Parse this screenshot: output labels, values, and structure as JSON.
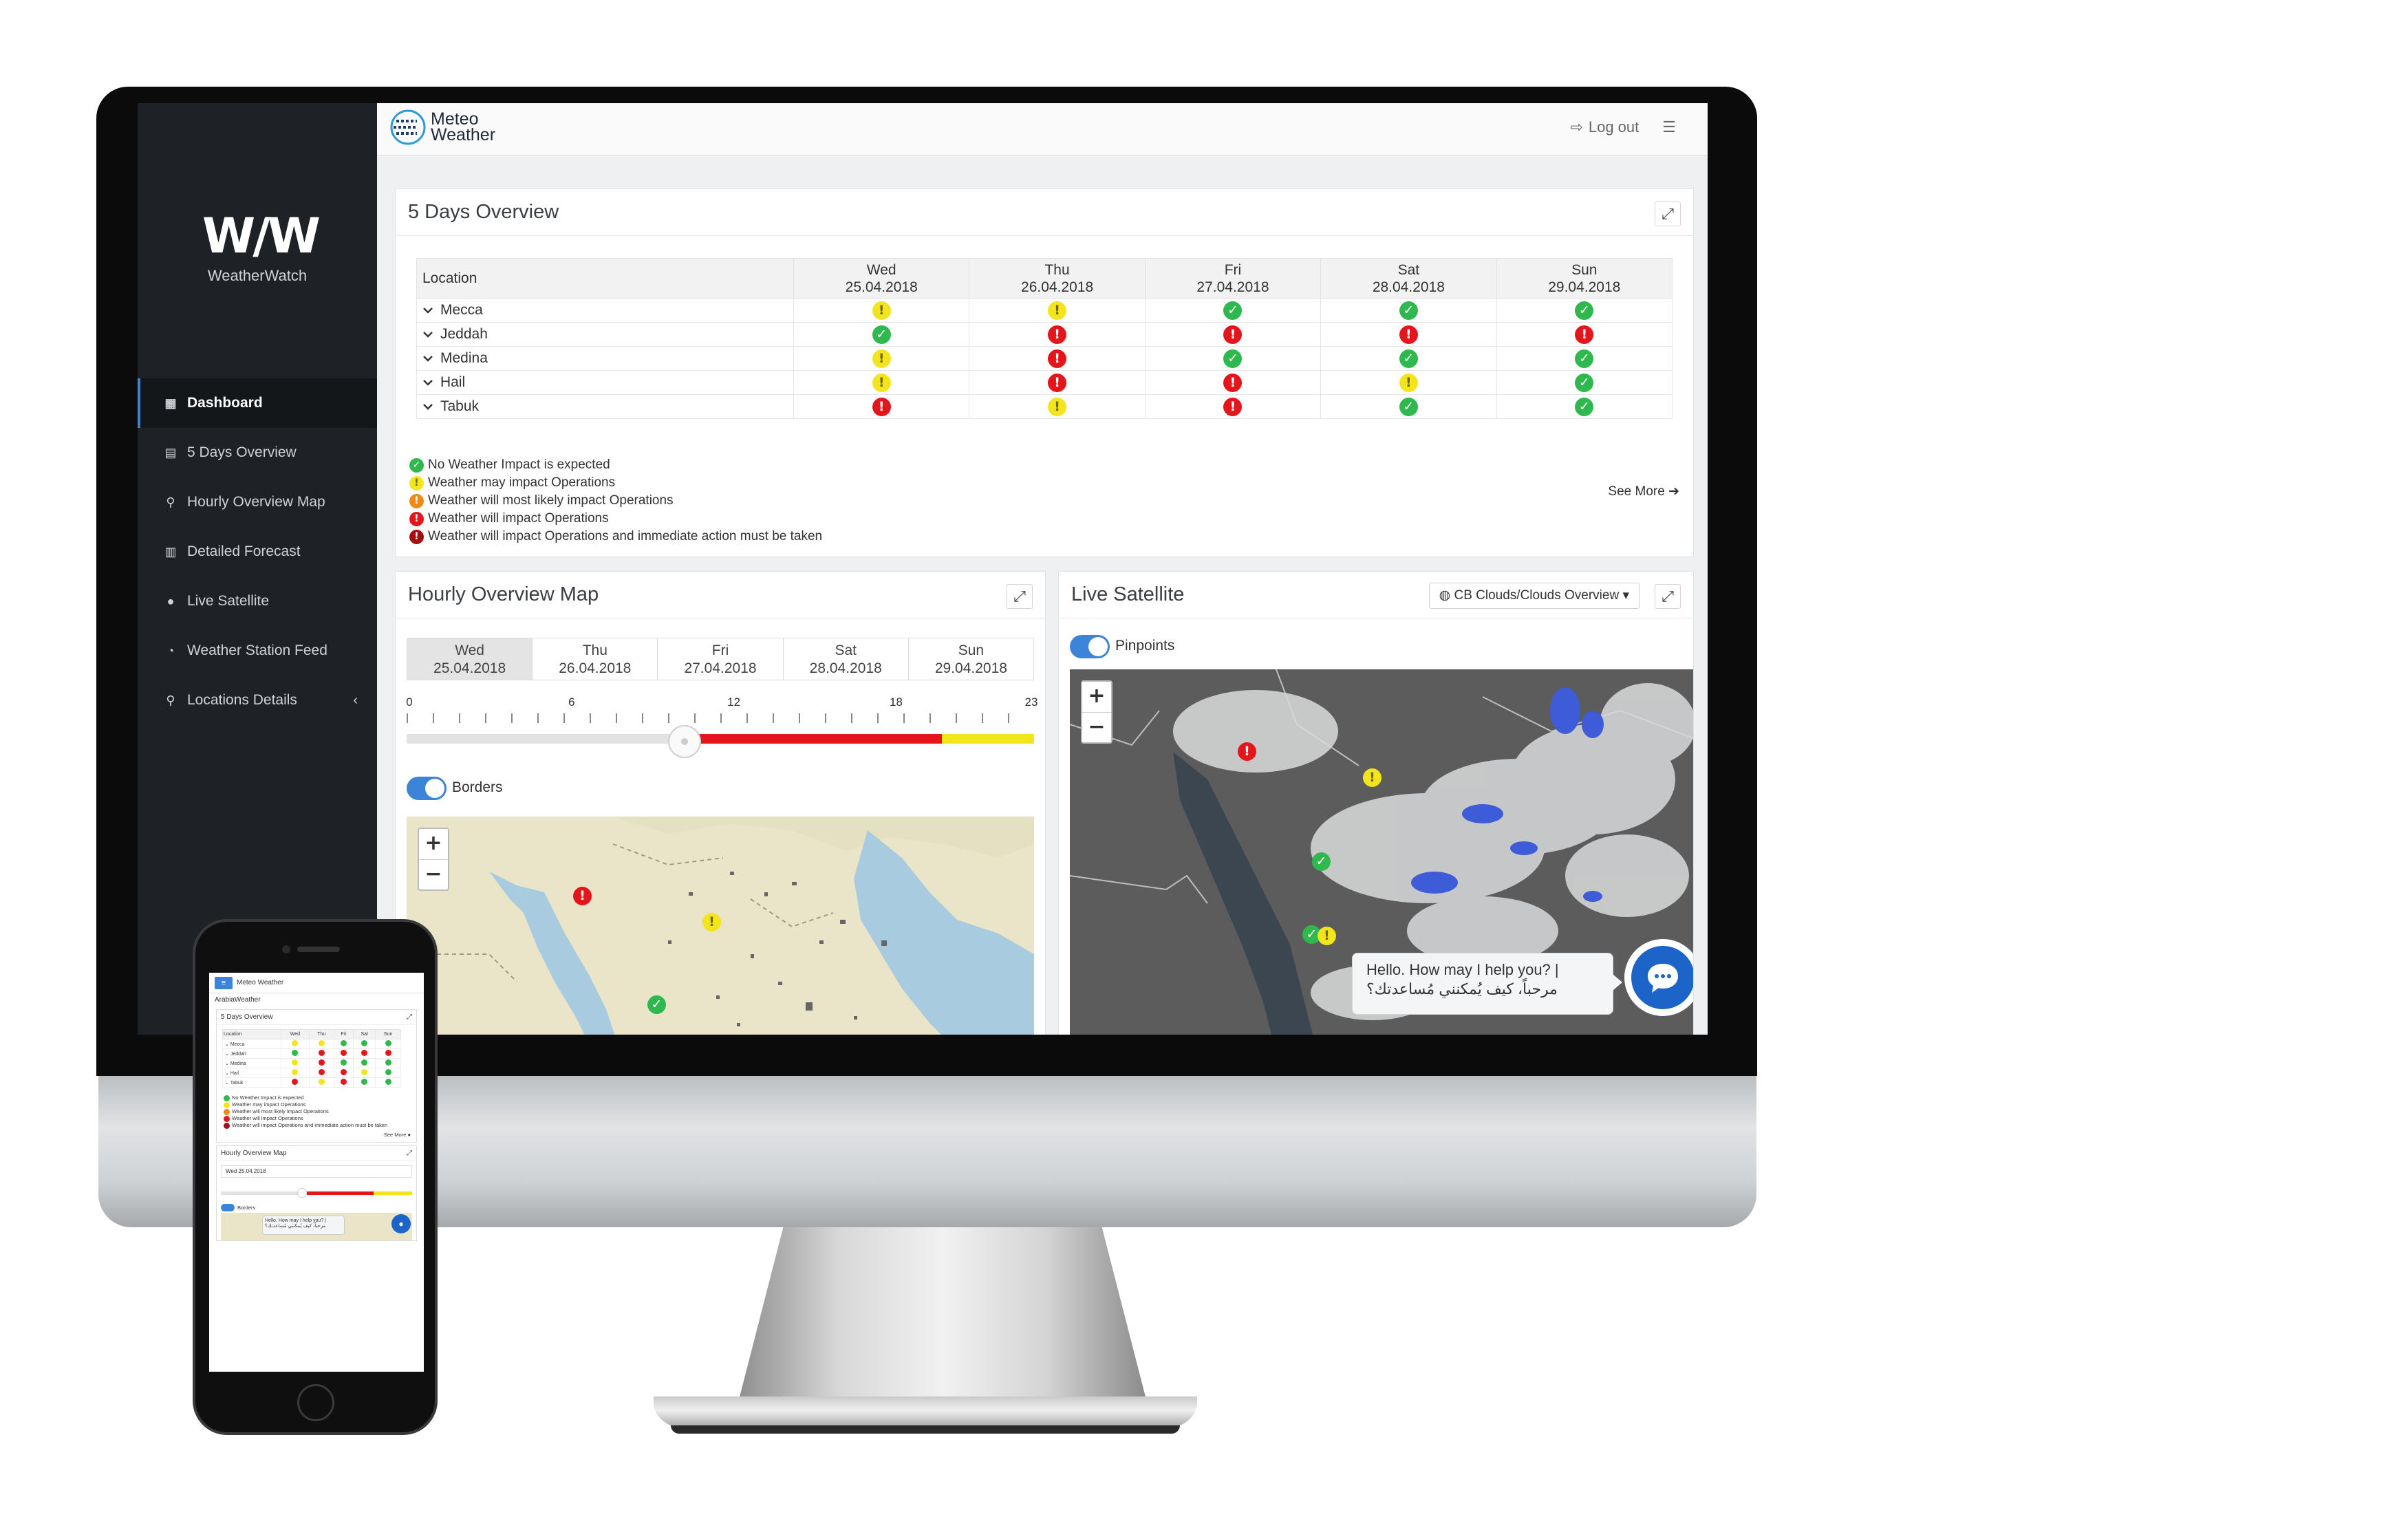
{
  "sidebar": {
    "logo_mark": "W/W",
    "logo_text": "WeatherWatch",
    "items": [
      {
        "label": "Dashboard",
        "icon": "dashboard-icon",
        "active": true
      },
      {
        "label": "5 Days Overview",
        "icon": "table-icon"
      },
      {
        "label": "Hourly Overview Map",
        "icon": "map-marker-icon"
      },
      {
        "label": "Detailed Forecast",
        "icon": "bar-chart-icon"
      },
      {
        "label": "Live Satellite",
        "icon": "globe-icon"
      },
      {
        "label": "Weather Station Feed",
        "icon": "dashboard-gauge-icon"
      },
      {
        "label": "Locations Details",
        "icon": "map-marker-icon",
        "caret": "‹"
      }
    ]
  },
  "topbar": {
    "brand_line1": "Meteo",
    "brand_line2": "Weather",
    "logout_label": "Log out",
    "menu_icon": "list-icon"
  },
  "five_days": {
    "title": "5 Days Overview",
    "location_header": "Location",
    "days": [
      {
        "day": "Wed",
        "date": "25.04.2018"
      },
      {
        "day": "Thu",
        "date": "26.04.2018"
      },
      {
        "day": "Fri",
        "date": "27.04.2018"
      },
      {
        "day": "Sat",
        "date": "28.04.2018"
      },
      {
        "day": "Sun",
        "date": "29.04.2018"
      }
    ],
    "rows": [
      {
        "location": "Mecca",
        "status": [
          "yellow",
          "yellow",
          "green",
          "green",
          "green"
        ]
      },
      {
        "location": "Jeddah",
        "status": [
          "green",
          "red",
          "red",
          "red",
          "red"
        ]
      },
      {
        "location": "Medina",
        "status": [
          "yellow",
          "red",
          "green",
          "green",
          "green"
        ]
      },
      {
        "location": "Hail",
        "status": [
          "yellow",
          "red",
          "red",
          "yellow",
          "green"
        ]
      },
      {
        "location": "Tabuk",
        "status": [
          "red",
          "yellow",
          "red",
          "green",
          "green"
        ]
      }
    ],
    "legend": [
      {
        "color": "green",
        "text": "No Weather Impact is expected"
      },
      {
        "color": "yellow",
        "text": "Weather may impact Operations"
      },
      {
        "color": "orange",
        "text": "Weather will most likely impact Operations"
      },
      {
        "color": "red",
        "text": "Weather will impact Operations"
      },
      {
        "color": "dark",
        "text": "Weather will impact Operations and immediate action must be taken"
      }
    ],
    "see_more": "See More ➔"
  },
  "hourly": {
    "title": "Hourly Overview Map",
    "days": [
      {
        "day": "Wed",
        "date": "25.04.2018",
        "active": true
      },
      {
        "day": "Thu",
        "date": "26.04.2018"
      },
      {
        "day": "Fri",
        "date": "27.04.2018"
      },
      {
        "day": "Sat",
        "date": "28.04.2018"
      },
      {
        "day": "Sun",
        "date": "29.04.2018"
      }
    ],
    "hour_labels": [
      "0",
      "6",
      "12",
      "18",
      "23"
    ],
    "slider_hour": 8,
    "borders_label": "Borders"
  },
  "satellite": {
    "title": "Live Satellite",
    "layer": "CB Clouds/Clouds Overview",
    "pinpoints_label": "Pinpoints",
    "chat_line1": "Hello. How may I help you? |",
    "chat_line2": "مرحباً، كيف يُمكنني مُساعدتك؟"
  },
  "colors": {
    "green": "#2eb84e",
    "yellow": "#f2e51d",
    "orange": "#f08a15",
    "red": "#e5161b",
    "dark": "#a50f12",
    "accent": "#3b84d8"
  },
  "phone": {
    "brand": "Meteo Weather",
    "subtitle": "ArabiaWeather",
    "five_days_title": "5 Days Overview",
    "hourly_title": "Hourly Overview Map",
    "hourly_day": "Wed 25.04.2018",
    "borders": "Borders",
    "see_more": "See More ●",
    "chat_line1": "Hello. How may I help you? |",
    "chat_line2": "مرحباً، كيف يُمكنني مُساعدتك؟"
  }
}
